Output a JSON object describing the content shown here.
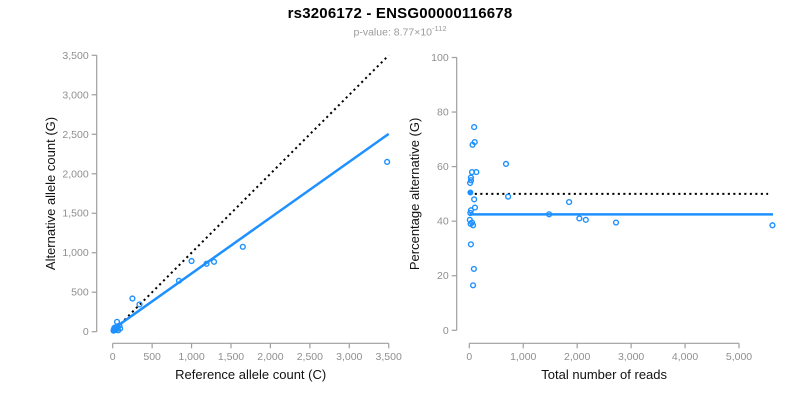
{
  "header": {
    "title": "rs3206172 - ENSG00000116678",
    "pvalue_prefix": "p-value: 8.77×10",
    "pvalue_exponent": "-112"
  },
  "colors": {
    "point_blue": "#1E90FF",
    "line_blue": "#1E90FF",
    "dotted_black": "#000000",
    "axis_gray": "#9e9e9e",
    "tick_label_gray": "#8f8f8f",
    "axis_title_color": "#111111",
    "subtitle_gray": "#9a9a9a"
  },
  "chart_data": [
    {
      "type": "scatter",
      "name": "allele-counts",
      "xlabel": "Reference allele count (C)",
      "ylabel": "Alternative allele count (G)",
      "xlim": [
        0,
        3500
      ],
      "ylim": [
        0,
        3500
      ],
      "xticks": [
        0,
        500,
        1000,
        1500,
        2000,
        2500,
        3000,
        3500
      ],
      "xtick_labels": [
        "0",
        "500",
        "1,000",
        "1,500",
        "2,000",
        "2,500",
        "3,000",
        "3,500"
      ],
      "yticks": [
        0,
        500,
        1000,
        1500,
        2000,
        2500,
        3000,
        3500
      ],
      "ytick_labels": [
        "0",
        "500",
        "1,000",
        "1,500",
        "2,000",
        "2,500",
        "3,000",
        "3,500"
      ],
      "grid": false,
      "legend": "none",
      "lines": [
        {
          "name": "identity-line",
          "style": "dotted",
          "color": "black",
          "width": 2,
          "x1": 0,
          "y1": 0,
          "x2": 3500,
          "y2": 3500
        },
        {
          "name": "regression-line",
          "style": "solid",
          "color": "blue",
          "width": 2.5,
          "x1": 0,
          "y1": 30,
          "x2": 3500,
          "y2": 2505
        }
      ],
      "points_open": [
        [
          250,
          420
        ],
        [
          340,
          345
        ],
        [
          840,
          645
        ],
        [
          1000,
          895
        ],
        [
          1190,
          860
        ],
        [
          1285,
          885
        ],
        [
          1650,
          1075
        ],
        [
          3480,
          2150
        ],
        [
          55,
          125
        ],
        [
          95,
          40
        ],
        [
          85,
          78
        ],
        [
          70,
          18
        ]
      ],
      "points_filled": [
        [
          10,
          12
        ],
        [
          18,
          18
        ],
        [
          25,
          25
        ],
        [
          32,
          30
        ],
        [
          40,
          34
        ],
        [
          48,
          40
        ],
        [
          15,
          30
        ],
        [
          28,
          42
        ],
        [
          38,
          48
        ],
        [
          50,
          52
        ],
        [
          22,
          36
        ],
        [
          55,
          58
        ],
        [
          35,
          20
        ],
        [
          45,
          28
        ],
        [
          60,
          45
        ],
        [
          12,
          24
        ],
        [
          30,
          55
        ],
        [
          20,
          48
        ]
      ]
    },
    {
      "type": "scatter",
      "name": "percentage-vs-depth",
      "xlabel": "Total number of reads",
      "ylabel": "Percentage alternative (G)",
      "xlim": [
        0,
        5000
      ],
      "ylim": [
        0,
        100
      ],
      "xticks": [
        0,
        1000,
        2000,
        3000,
        4000,
        5000
      ],
      "xtick_labels": [
        "0",
        "1,000",
        "2,000",
        "3,000",
        "4,000",
        "5,000"
      ],
      "yticks": [
        0,
        20,
        40,
        60,
        80,
        100
      ],
      "ytick_labels": [
        "0",
        "20",
        "40",
        "60",
        "80",
        "100"
      ],
      "grid": false,
      "legend": "none",
      "lines": [
        {
          "name": "expected-50pct-line",
          "style": "dotted",
          "color": "black",
          "width": 2,
          "x1": 0,
          "y1": 50,
          "x2": 5540,
          "y2": 50
        },
        {
          "name": "mean-percentage-line",
          "style": "solid",
          "color": "blue",
          "width": 2.5,
          "x1": 0,
          "y1": 42.5,
          "x2": 5630,
          "y2": 42.5
        }
      ],
      "points_open": [
        [
          90,
          74.5
        ],
        [
          60,
          68
        ],
        [
          100,
          69
        ],
        [
          680,
          61
        ],
        [
          50,
          58
        ],
        [
          130,
          58
        ],
        [
          30,
          56
        ],
        [
          32,
          55
        ],
        [
          15,
          54
        ],
        [
          720,
          49
        ],
        [
          90,
          48
        ],
        [
          105,
          45
        ],
        [
          30,
          44
        ],
        [
          20,
          43
        ],
        [
          10,
          40.5
        ],
        [
          50,
          39.5
        ],
        [
          25,
          39
        ],
        [
          70,
          38.5
        ],
        [
          30,
          31.5
        ],
        [
          85,
          22.5
        ],
        [
          70,
          16.5
        ],
        [
          1480,
          42.5
        ],
        [
          1850,
          47
        ],
        [
          2040,
          41
        ],
        [
          2160,
          40.5
        ],
        [
          2720,
          39.5
        ],
        [
          5620,
          38.5
        ]
      ],
      "points_filled": [
        [
          20,
          50.5
        ]
      ]
    }
  ]
}
